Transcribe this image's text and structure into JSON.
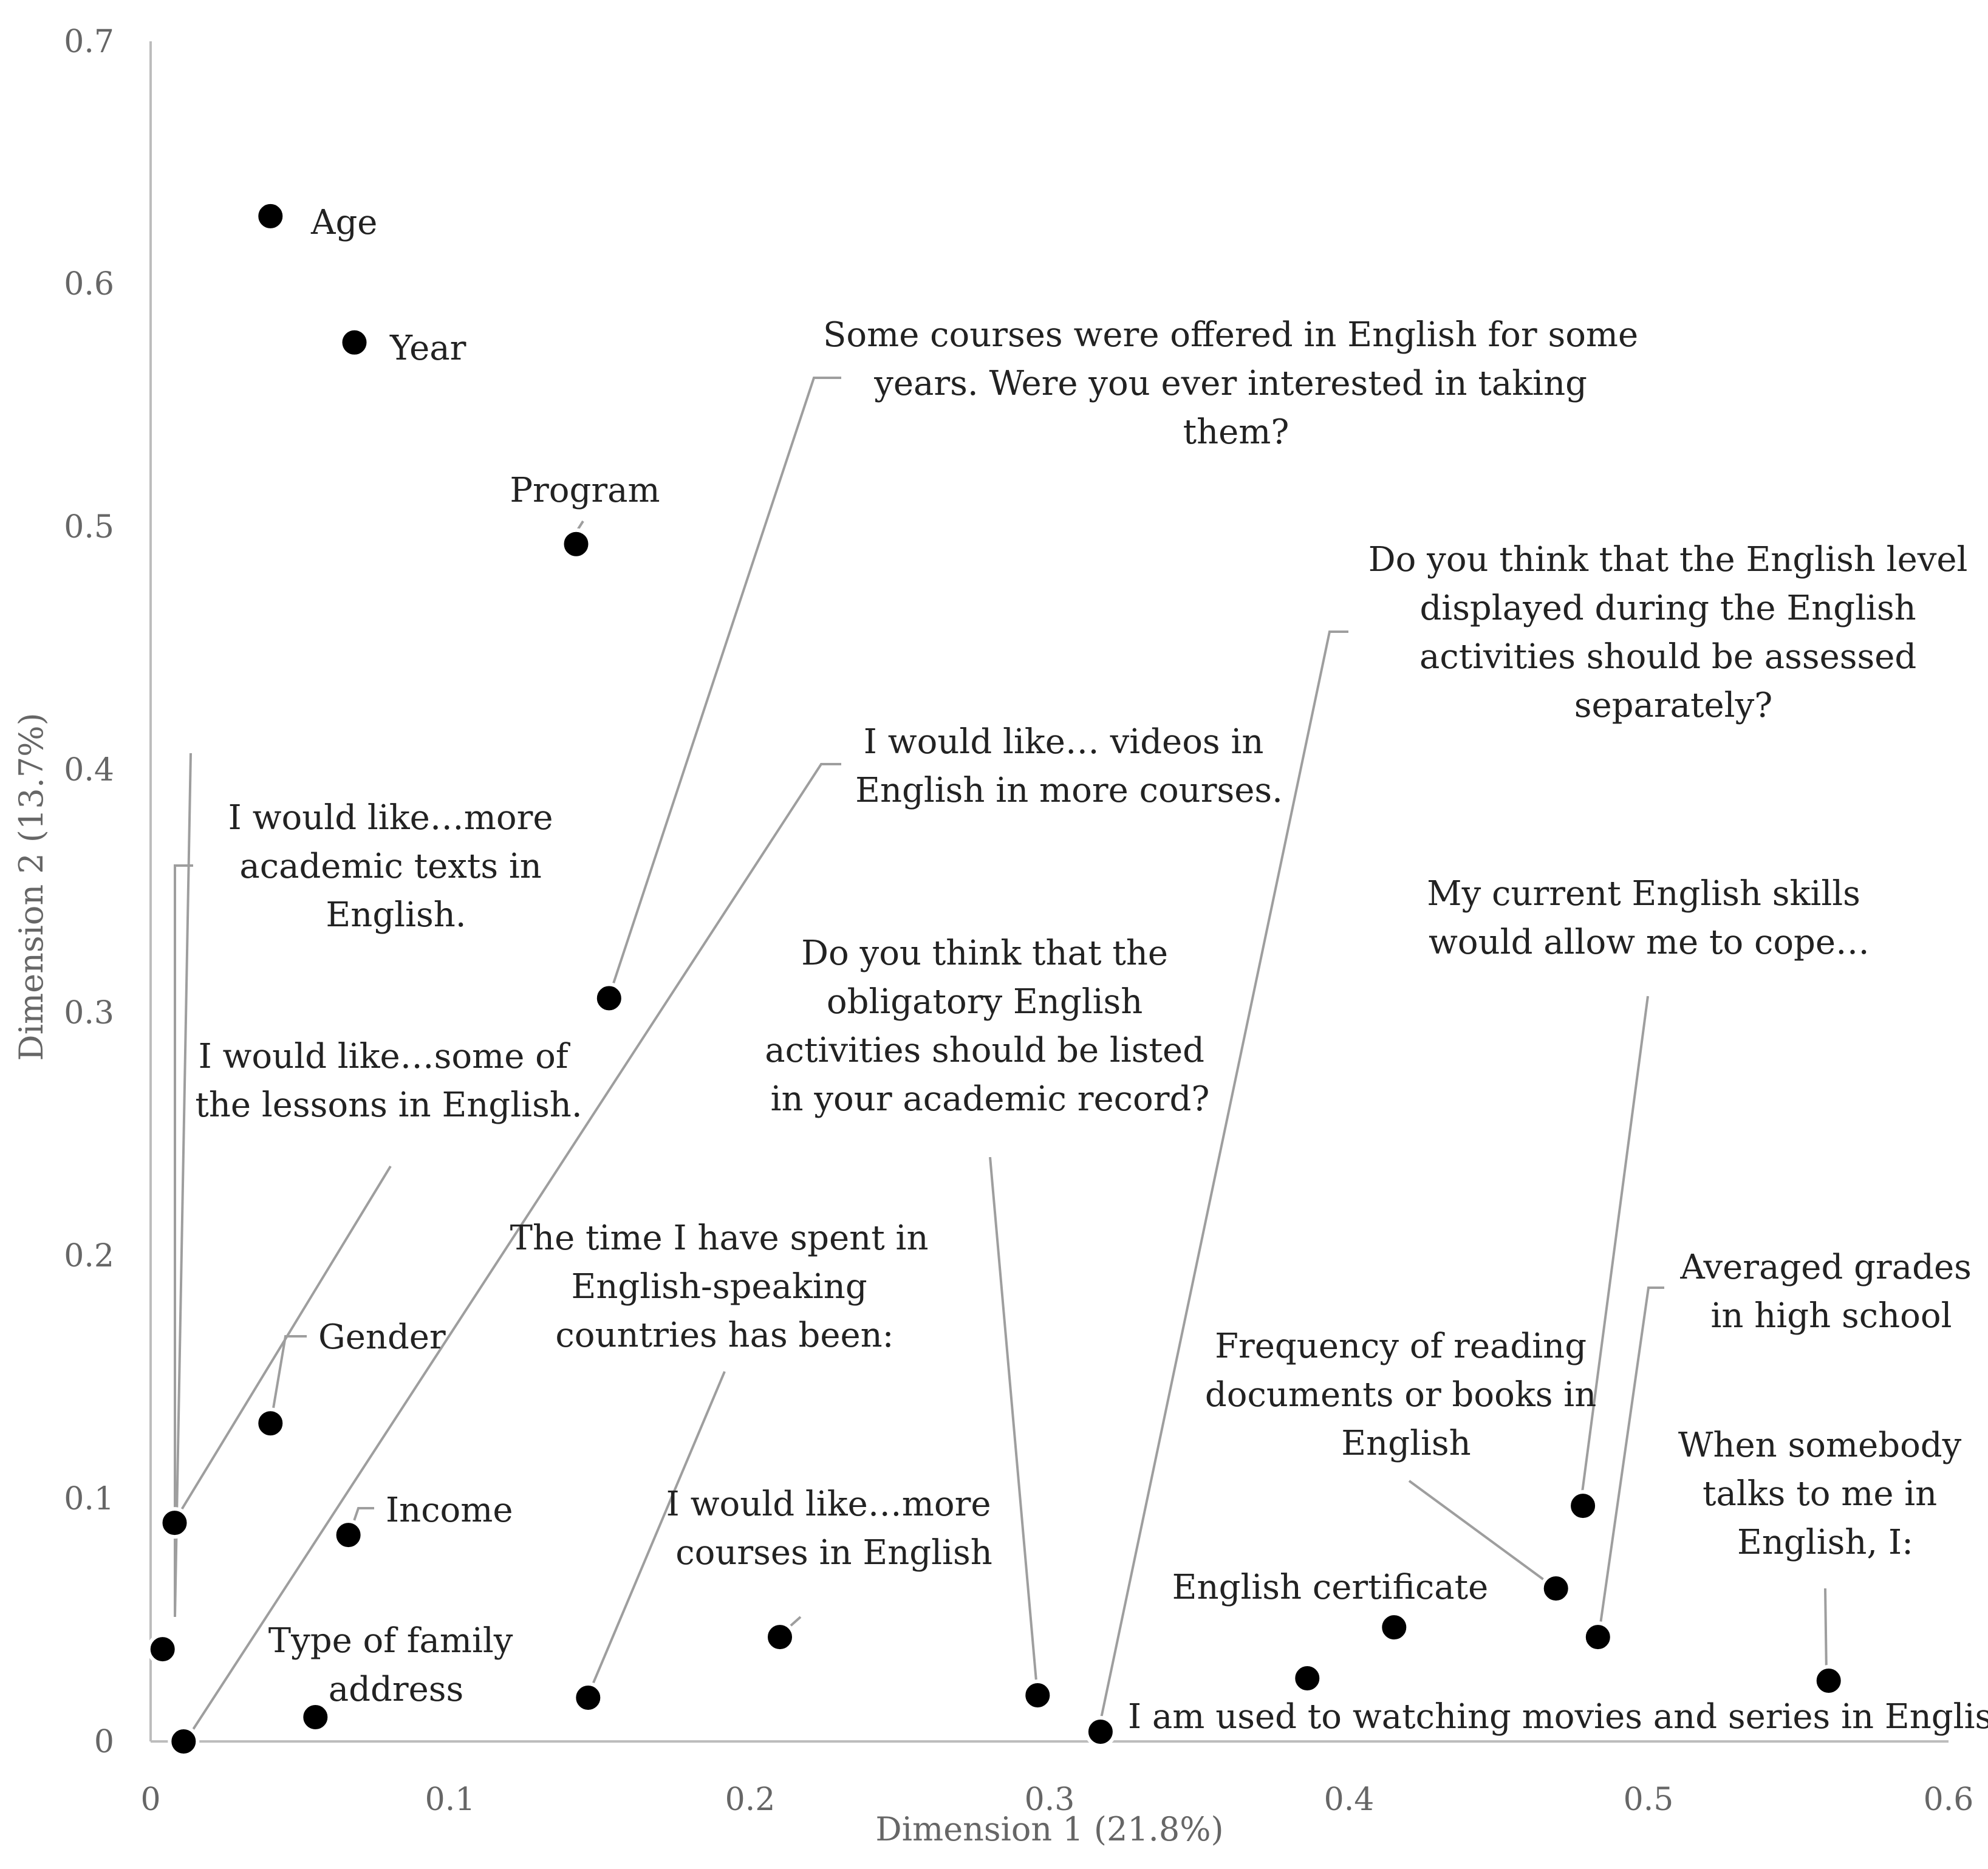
{
  "chart_data": {
    "type": "scatter",
    "xlabel": "Dimension 1 (21.8%)",
    "ylabel": "Dimension 2 (13.7%)",
    "xlim": [
      0,
      0.6
    ],
    "ylim": [
      0,
      0.7
    ],
    "xticks": [
      "0",
      "0.1",
      "0.2",
      "0.3",
      "0.4",
      "0.5",
      "0.6"
    ],
    "yticks": [
      "0",
      "0.1",
      "0.2",
      "0.3",
      "0.4",
      "0.5",
      "0.6",
      "0.7"
    ],
    "grid": false,
    "points": [
      {
        "id": "age",
        "label": [
          "Age"
        ],
        "x": 0.04,
        "y": 0.628
      },
      {
        "id": "year",
        "label": [
          "Year"
        ],
        "x": 0.068,
        "y": 0.576
      },
      {
        "id": "program",
        "label": [
          "Program"
        ],
        "x": 0.142,
        "y": 0.493
      },
      {
        "id": "some-courses",
        "label": [
          "Some courses were offered in English for some",
          "years. Were you ever interested in taking",
          "them?"
        ],
        "x": 0.153,
        "y": 0.306
      },
      {
        "id": "academic-texts",
        "label": [
          "I would like…more",
          "academic texts in",
          "English."
        ],
        "x": 0.004,
        "y": 0.038
      },
      {
        "id": "lessons-english",
        "label": [
          "I would like…some of",
          "the lessons in English."
        ],
        "x": 0.008,
        "y": 0.09
      },
      {
        "id": "gender",
        "label": [
          "Gender"
        ],
        "x": 0.04,
        "y": 0.131
      },
      {
        "id": "income",
        "label": [
          "Income"
        ],
        "x": 0.066,
        "y": 0.085
      },
      {
        "id": "videos-english",
        "label": [
          "I would like… videos in",
          "English in more courses."
        ],
        "x": 0.011,
        "y": 0.0
      },
      {
        "id": "family-address",
        "label": [
          "Type of family",
          "address"
        ],
        "x": 0.055,
        "y": 0.01
      },
      {
        "id": "time-spent",
        "label": [
          "The time I have spent in",
          "English-speaking",
          "countries has been:"
        ],
        "x": 0.146,
        "y": 0.018
      },
      {
        "id": "more-courses",
        "label": [
          "I would like…more",
          "courses in English"
        ],
        "x": 0.21,
        "y": 0.043
      },
      {
        "id": "obligatory-activities",
        "label": [
          "Do you think that the",
          "obligatory English",
          "activities should be listed",
          "in your academic record?"
        ],
        "x": 0.296,
        "y": 0.019
      },
      {
        "id": "level-assessed",
        "label": [
          "Do you think that the English level",
          "displayed during the English",
          "activities should be assessed",
          "separately?"
        ],
        "x": 0.317,
        "y": 0.004
      },
      {
        "id": "movies-series",
        "label": [
          "I am used to watching movies and series in English"
        ],
        "x": 0.386,
        "y": 0.026
      },
      {
        "id": "english-certificate",
        "label": [
          "English certificate"
        ],
        "x": 0.415,
        "y": 0.047
      },
      {
        "id": "reading-frequency",
        "label": [
          "Frequency of reading",
          "documents or books in",
          "English"
        ],
        "x": 0.469,
        "y": 0.063
      },
      {
        "id": "current-skills",
        "label": [
          "My current English skills",
          "would allow me to cope…"
        ],
        "x": 0.478,
        "y": 0.097
      },
      {
        "id": "averaged-grades",
        "label": [
          "Averaged grades",
          "in high school"
        ],
        "x": 0.483,
        "y": 0.043
      },
      {
        "id": "somebody-talks",
        "label": [
          "When somebody",
          "talks to me in",
          "English, I:"
        ],
        "x": 0.56,
        "y": 0.025
      }
    ]
  }
}
